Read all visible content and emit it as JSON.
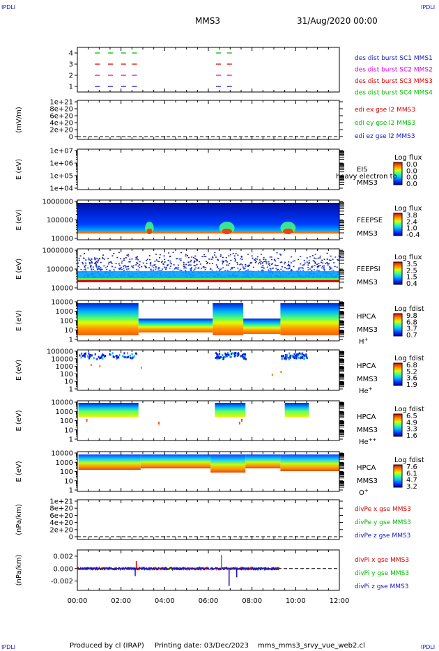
{
  "header": {
    "corner_label": "IPDLI",
    "title": "MMS3",
    "datetime": "31/Aug/2020 00:00"
  },
  "footer": {
    "produced_by": "Produced by cl (IRAP)",
    "printing_date": "Printing date: 03/Dec/2023",
    "script": "mms_mms3_srvy_vue_web2.cl"
  },
  "colors": {
    "c1": "#1515c8",
    "c2": "#e000e0",
    "c3": "#dd0000",
    "c4": "#00bb00",
    "axis": "#000000",
    "background": "#ffffff"
  },
  "chart_data": [
    {
      "type": "scatter",
      "panel": "burst",
      "yticks": [
        "1",
        "2",
        "3",
        "4"
      ],
      "ylim": [
        0.5,
        4.5
      ],
      "legend": [
        {
          "text": "des dist burst SC1 MMS1",
          "color": "c1"
        },
        {
          "text": "des dist burst SC2 MMS2",
          "color": "c2"
        },
        {
          "text": "des dist burst SC3 MMS3",
          "color": "c3"
        },
        {
          "text": "des dist burst SC4 MMS4",
          "color": "c4"
        }
      ],
      "series": [
        {
          "row": 4,
          "color": "c4",
          "x": [
            0.9,
            1.5,
            2.1,
            2.6,
            6.45,
            6.95
          ]
        },
        {
          "row": 3,
          "color": "c3",
          "x": [
            0.9,
            1.5,
            2.1,
            2.6,
            6.45,
            6.95
          ]
        },
        {
          "row": 2,
          "color": "c2",
          "x": [
            0.9,
            1.5,
            2.1,
            2.6,
            6.45,
            6.95
          ]
        },
        {
          "row": 1,
          "color": "c1",
          "x": [
            0.9,
            1.5,
            2.1,
            2.6,
            6.45,
            6.95
          ]
        }
      ]
    },
    {
      "type": "line",
      "panel": "edi",
      "ylabel": "(mV/m)",
      "yticks": [
        "0",
        "2e+20",
        "4e+20",
        "6e+20",
        "8e+20",
        "1e+21"
      ],
      "ylim": [
        0,
        1e+21
      ],
      "dashed_zero": true,
      "legend": [
        {
          "text": "edi ex gse l2 MMS3",
          "color": "c3"
        },
        {
          "text": "edi ey gse l2 MMS3",
          "color": "c4"
        },
        {
          "text": "edi ez gse l2 MMS3",
          "color": "c1"
        }
      ]
    },
    {
      "type": "heatmap",
      "panel": "eis",
      "ylabel": "E (eV)",
      "yticks": [
        "1e+04",
        "1e+05",
        "1e+06",
        "1e+07"
      ],
      "side_labels": [
        "EIS",
        "MMS3"
      ],
      "overlap_text": "heavy electron to",
      "colorbar_title": "Log flux",
      "colorbar_ticks": [
        "0.0",
        "0.0",
        "0.0",
        "0.0"
      ],
      "empty": true
    },
    {
      "type": "heatmap",
      "panel": "feepse",
      "ylabel": "E (eV)",
      "yticks": [
        "10000",
        "100000",
        "1000000"
      ],
      "side_labels": [
        "FEEPSE",
        "MMS3"
      ],
      "colorbar_title": "Log flux",
      "colorbar_ticks": [
        "3.8",
        "2.4",
        "1.0",
        "-0.4"
      ],
      "hot_intervals": [
        [
          3.1,
          3.5
        ],
        [
          6.5,
          7.2
        ],
        [
          9.3,
          10.0
        ]
      ]
    },
    {
      "type": "heatmap",
      "panel": "feepsi",
      "ylabel": "E (eV)",
      "yticks": [
        "10000",
        "100000",
        "1000000"
      ],
      "side_labels": [
        "FEEPSI",
        "MMS3"
      ],
      "colorbar_title": "Log flux",
      "colorbar_ticks": [
        "3.5",
        "2.5",
        "1.5",
        "0.4"
      ]
    },
    {
      "type": "heatmap",
      "panel": "hpca_h",
      "ylabel": "E (eV)",
      "yticks": [
        "1",
        "10",
        "100",
        "1000",
        "10000"
      ],
      "side_labels": [
        "HPCA",
        "MMS3"
      ],
      "species": "H",
      "species_sup": "+",
      "colorbar_title": "Log fdist",
      "colorbar_ticks": [
        "9.8",
        "6.8",
        "3.7",
        "0.7"
      ],
      "covered_intervals": [
        [
          0.0,
          2.8
        ],
        [
          6.2,
          7.6
        ],
        [
          9.3,
          12.0
        ]
      ]
    },
    {
      "type": "heatmap",
      "panel": "hpca_he1",
      "ylabel": "E (eV)",
      "yticks": [
        "1",
        "10",
        "100",
        "1000",
        "10000",
        "100000"
      ],
      "side_labels": [
        "HPCA",
        "MMS3"
      ],
      "species": "He",
      "species_sup": "+",
      "colorbar_title": "Log fdist",
      "colorbar_ticks": [
        "6.8",
        "5.2",
        "3.6",
        "1.9"
      ]
    },
    {
      "type": "heatmap",
      "panel": "hpca_he2",
      "ylabel": "E (eV)",
      "yticks": [
        "1",
        "10",
        "100",
        "1000",
        "10000"
      ],
      "side_labels": [
        "HPCA",
        "MMS3"
      ],
      "species": "He",
      "species_sup": "++",
      "colorbar_title": "Log fdist",
      "colorbar_ticks": [
        "6.5",
        "4.9",
        "3.3",
        "1.6"
      ],
      "covered_intervals": [
        [
          0.05,
          2.8
        ],
        [
          6.3,
          7.7
        ],
        [
          9.5,
          10.6
        ]
      ]
    },
    {
      "type": "heatmap",
      "panel": "hpca_o",
      "ylabel": "E (eV)",
      "yticks": [
        "1",
        "10",
        "100",
        "1000",
        "10000"
      ],
      "side_labels": [
        "HPCA",
        "MMS3"
      ],
      "species": "O",
      "species_sup": "+",
      "colorbar_title": "Log fdist",
      "colorbar_ticks": [
        "7.6",
        "6.1",
        "4.7",
        "3.2"
      ]
    },
    {
      "type": "line",
      "panel": "divpe",
      "ylabel": "(nPa/km)",
      "yticks": [
        "0",
        "2e+20",
        "4e+20",
        "6e+20",
        "8e+20",
        "1e+21"
      ],
      "ylim": [
        0,
        1e+21
      ],
      "dashed_zero": true,
      "legend": [
        {
          "text": "divPe x gse MMS3",
          "color": "c3"
        },
        {
          "text": "divPe y gse MMS3",
          "color": "c4"
        },
        {
          "text": "divPe z gse MMS3",
          "color": "c1"
        }
      ]
    },
    {
      "type": "line",
      "panel": "divpi",
      "ylabel": "(nPa/km)",
      "yticks": [
        "-0.002",
        "0.000",
        "0.002"
      ],
      "ylim": [
        -0.0035,
        0.003
      ],
      "data_end": 9.25,
      "dashed_zero": true,
      "legend": [
        {
          "text": "divPi x gse MMS3",
          "color": "c3"
        },
        {
          "text": "divPi y gse MMS3",
          "color": "c4"
        },
        {
          "text": "divPi z gse MMS3",
          "color": "c1"
        }
      ],
      "spikes": [
        {
          "x": 2.65,
          "y": -0.0012,
          "color": "c1"
        },
        {
          "x": 6.6,
          "y": 0.0022,
          "color": "c4"
        },
        {
          "x": 6.95,
          "y": -0.0028,
          "color": "c1"
        },
        {
          "x": 7.3,
          "y": -0.0014,
          "color": "c1"
        },
        {
          "x": 2.7,
          "y": 0.0012,
          "color": "c3"
        }
      ]
    },
    {
      "type": "axis",
      "panel": "time_axis",
      "xlim": [
        0,
        12
      ],
      "xticks": [
        "00:00",
        "02:00",
        "04:00",
        "06:00",
        "08:00",
        "10:00",
        "12:00"
      ]
    }
  ]
}
